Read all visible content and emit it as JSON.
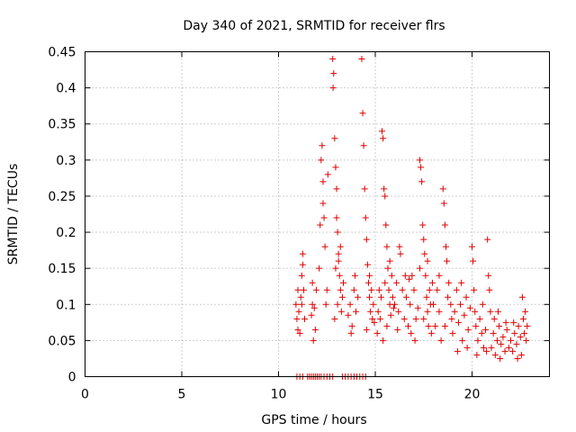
{
  "chart_data": {
    "type": "scatter",
    "title": "Day 340 of 2021, SRMTID for receiver flrs",
    "xlabel": "GPS time / hours",
    "ylabel": "SRMTID / TECUs",
    "xlim": [
      0,
      24
    ],
    "ylim": [
      0,
      0.45
    ],
    "xticks": [
      0,
      5,
      10,
      15,
      20
    ],
    "xtick_labels": [
      "0",
      "5",
      "10",
      "15",
      "20"
    ],
    "yticks": [
      0,
      0.05,
      0.1,
      0.15,
      0.2,
      0.25,
      0.3,
      0.35,
      0.4,
      0.45
    ],
    "ytick_labels": [
      "0",
      "0.05",
      "0.1",
      "0.15",
      "0.2",
      "0.25",
      "0.3",
      "0.35",
      "0.4",
      "0.45"
    ],
    "grid": true,
    "marker": "+",
    "series": [
      {
        "name": "SRMTID",
        "color": "#e00000",
        "points": [
          [
            10.9,
            0.1
          ],
          [
            10.95,
            0.08
          ],
          [
            11.0,
            0.12
          ],
          [
            11.05,
            0.09
          ],
          [
            11.1,
            0.06
          ],
          [
            11.15,
            0.11
          ],
          [
            11.2,
            0.14
          ],
          [
            11.25,
            0.17
          ],
          [
            11.3,
            0.12
          ],
          [
            11.35,
            0.08
          ],
          [
            11.0,
            0.065
          ],
          [
            11.2,
            0.1
          ],
          [
            11.25,
            0.155
          ],
          [
            11.7,
            0.085
          ],
          [
            11.75,
            0.1
          ],
          [
            11.8,
            0.05
          ],
          [
            11.85,
            0.095
          ],
          [
            11.9,
            0.065
          ],
          [
            11.95,
            0.12
          ],
          [
            11.75,
            0.13
          ],
          [
            12.1,
            0.15
          ],
          [
            12.15,
            0.21
          ],
          [
            12.2,
            0.3
          ],
          [
            12.25,
            0.32
          ],
          [
            12.3,
            0.27
          ],
          [
            12.35,
            0.22
          ],
          [
            12.4,
            0.18
          ],
          [
            12.5,
            0.12
          ],
          [
            12.55,
            0.28
          ],
          [
            12.3,
            0.24
          ],
          [
            12.45,
            0.1
          ],
          [
            12.8,
            0.44
          ],
          [
            12.82,
            0.4
          ],
          [
            12.85,
            0.42
          ],
          [
            12.9,
            0.33
          ],
          [
            12.95,
            0.29
          ],
          [
            13.0,
            0.26
          ],
          [
            13.05,
            0.2
          ],
          [
            13.1,
            0.17
          ],
          [
            13.15,
            0.14
          ],
          [
            13.2,
            0.12
          ],
          [
            13.25,
            0.09
          ],
          [
            13.3,
            0.11
          ],
          [
            13.0,
            0.22
          ],
          [
            13.1,
            0.16
          ],
          [
            12.9,
            0.08
          ],
          [
            13.2,
            0.18
          ],
          [
            13.35,
            0.13
          ],
          [
            13.05,
            0.1
          ],
          [
            12.95,
            0.15
          ],
          [
            13.6,
            0.085
          ],
          [
            13.7,
            0.1
          ],
          [
            13.8,
            0.07
          ],
          [
            13.9,
            0.12
          ],
          [
            14.0,
            0.09
          ],
          [
            14.1,
            0.11
          ],
          [
            13.75,
            0.06
          ],
          [
            13.95,
            0.14
          ],
          [
            14.3,
            0.44
          ],
          [
            14.35,
            0.365
          ],
          [
            14.4,
            0.32
          ],
          [
            14.45,
            0.26
          ],
          [
            14.5,
            0.22
          ],
          [
            14.55,
            0.19
          ],
          [
            14.6,
            0.155
          ],
          [
            14.65,
            0.13
          ],
          [
            14.7,
            0.11
          ],
          [
            14.75,
            0.09
          ],
          [
            14.8,
            0.12
          ],
          [
            14.85,
            0.08
          ],
          [
            14.9,
            0.1
          ],
          [
            14.55,
            0.065
          ],
          [
            14.7,
            0.14
          ],
          [
            14.95,
            0.075
          ],
          [
            15.1,
            0.06
          ],
          [
            15.15,
            0.09
          ],
          [
            15.2,
            0.12
          ],
          [
            15.25,
            0.08
          ],
          [
            15.3,
            0.11
          ],
          [
            15.35,
            0.34
          ],
          [
            15.4,
            0.33
          ],
          [
            15.45,
            0.26
          ],
          [
            15.5,
            0.25
          ],
          [
            15.55,
            0.21
          ],
          [
            15.6,
            0.18
          ],
          [
            15.65,
            0.15
          ],
          [
            15.7,
            0.12
          ],
          [
            15.75,
            0.1
          ],
          [
            15.8,
            0.085
          ],
          [
            15.85,
            0.14
          ],
          [
            15.9,
            0.11
          ],
          [
            15.95,
            0.095
          ],
          [
            15.4,
            0.05
          ],
          [
            15.6,
            0.07
          ],
          [
            15.75,
            0.16
          ],
          [
            15.5,
            0.13
          ],
          [
            16.0,
            0.1
          ],
          [
            16.1,
            0.13
          ],
          [
            16.2,
            0.09
          ],
          [
            16.3,
            0.17
          ],
          [
            16.4,
            0.12
          ],
          [
            16.5,
            0.08
          ],
          [
            16.6,
            0.11
          ],
          [
            16.7,
            0.07
          ],
          [
            16.8,
            0.1
          ],
          [
            16.9,
            0.14
          ],
          [
            17.0,
            0.12
          ],
          [
            17.1,
            0.08
          ],
          [
            17.2,
            0.095
          ],
          [
            17.3,
            0.15
          ],
          [
            16.25,
            0.18
          ],
          [
            16.55,
            0.14
          ],
          [
            16.85,
            0.06
          ],
          [
            17.05,
            0.05
          ],
          [
            16.15,
            0.065
          ],
          [
            16.75,
            0.135
          ],
          [
            17.3,
            0.3
          ],
          [
            17.35,
            0.29
          ],
          [
            17.4,
            0.27
          ],
          [
            17.45,
            0.21
          ],
          [
            17.5,
            0.19
          ],
          [
            17.55,
            0.17
          ],
          [
            17.6,
            0.14
          ],
          [
            17.65,
            0.11
          ],
          [
            17.7,
            0.09
          ],
          [
            17.75,
            0.07
          ],
          [
            17.8,
            0.12
          ],
          [
            17.85,
            0.1
          ],
          [
            17.9,
            0.06
          ],
          [
            17.95,
            0.13
          ],
          [
            17.5,
            0.08
          ],
          [
            17.7,
            0.16
          ],
          [
            18.0,
            0.1
          ],
          [
            18.1,
            0.07
          ],
          [
            18.2,
            0.12
          ],
          [
            18.3,
            0.09
          ],
          [
            18.4,
            0.05
          ],
          [
            18.5,
            0.26
          ],
          [
            18.55,
            0.24
          ],
          [
            18.6,
            0.21
          ],
          [
            18.65,
            0.18
          ],
          [
            18.7,
            0.16
          ],
          [
            18.8,
            0.13
          ],
          [
            18.9,
            0.1
          ],
          [
            18.95,
            0.08
          ],
          [
            18.3,
            0.14
          ],
          [
            18.6,
            0.07
          ],
          [
            18.75,
            0.11
          ],
          [
            19.0,
            0.06
          ],
          [
            19.1,
            0.09
          ],
          [
            19.2,
            0.12
          ],
          [
            19.3,
            0.075
          ],
          [
            19.4,
            0.1
          ],
          [
            19.5,
            0.05
          ],
          [
            19.6,
            0.085
          ],
          [
            19.7,
            0.11
          ],
          [
            19.8,
            0.065
          ],
          [
            19.9,
            0.095
          ],
          [
            19.45,
            0.13
          ],
          [
            19.75,
            0.04
          ],
          [
            19.25,
            0.035
          ],
          [
            20.0,
            0.18
          ],
          [
            20.05,
            0.16
          ],
          [
            20.1,
            0.12
          ],
          [
            20.15,
            0.09
          ],
          [
            20.2,
            0.07
          ],
          [
            20.3,
            0.05
          ],
          [
            20.4,
            0.08
          ],
          [
            20.5,
            0.06
          ],
          [
            20.6,
            0.04
          ],
          [
            20.7,
            0.065
          ],
          [
            20.8,
            0.19
          ],
          [
            20.85,
            0.14
          ],
          [
            20.9,
            0.12
          ],
          [
            20.95,
            0.09
          ],
          [
            20.25,
            0.03
          ],
          [
            20.55,
            0.1
          ],
          [
            20.75,
            0.035
          ],
          [
            21.0,
            0.04
          ],
          [
            21.1,
            0.06
          ],
          [
            21.2,
            0.03
          ],
          [
            21.3,
            0.05
          ],
          [
            21.4,
            0.07
          ],
          [
            21.5,
            0.045
          ],
          [
            21.6,
            0.055
          ],
          [
            21.7,
            0.035
          ],
          [
            21.8,
            0.065
          ],
          [
            21.9,
            0.04
          ],
          [
            21.15,
            0.08
          ],
          [
            21.45,
            0.025
          ],
          [
            21.75,
            0.075
          ],
          [
            21.35,
            0.09
          ],
          [
            22.0,
            0.05
          ],
          [
            22.1,
            0.035
          ],
          [
            22.2,
            0.06
          ],
          [
            22.3,
            0.045
          ],
          [
            22.4,
            0.07
          ],
          [
            22.5,
            0.055
          ],
          [
            22.6,
            0.11
          ],
          [
            22.65,
            0.08
          ],
          [
            22.7,
            0.06
          ],
          [
            22.75,
            0.09
          ],
          [
            22.8,
            0.05
          ],
          [
            22.35,
            0.025
          ],
          [
            22.15,
            0.075
          ],
          [
            22.55,
            0.03
          ],
          [
            22.85,
            0.07
          ],
          [
            10.95,
            0
          ],
          [
            11.1,
            0
          ],
          [
            11.25,
            0
          ],
          [
            11.5,
            0
          ],
          [
            11.6,
            0
          ],
          [
            11.7,
            0
          ],
          [
            11.8,
            0
          ],
          [
            11.9,
            0
          ],
          [
            12.0,
            0
          ],
          [
            12.1,
            0
          ],
          [
            12.2,
            0
          ],
          [
            12.35,
            0
          ],
          [
            12.5,
            0
          ],
          [
            12.65,
            0
          ],
          [
            12.8,
            0
          ],
          [
            13.3,
            0
          ],
          [
            13.45,
            0
          ],
          [
            13.6,
            0
          ],
          [
            13.75,
            0
          ],
          [
            13.9,
            0
          ],
          [
            14.05,
            0
          ],
          [
            14.2,
            0
          ],
          [
            14.35,
            0
          ],
          [
            14.5,
            0
          ]
        ]
      }
    ]
  }
}
